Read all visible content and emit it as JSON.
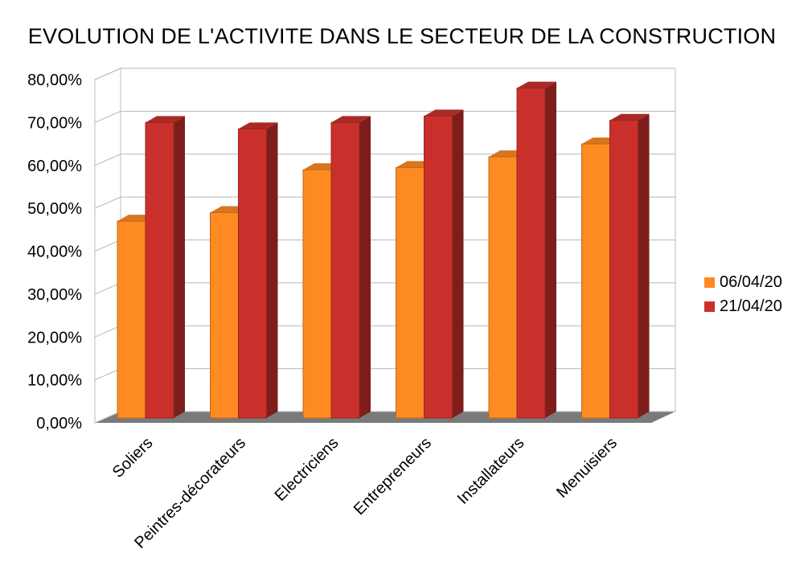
{
  "chart_data": {
    "type": "bar",
    "title": "EVOLUTION DE L'ACTIVITE DANS LE SECTEUR DE LA CONSTRUCTION",
    "categories": [
      "Soliers",
      "Peintres-décorateurs",
      "Electriciens",
      "Entrepreneurs",
      "Installateurs",
      "Menuisiers"
    ],
    "series": [
      {
        "name": "06/04/20",
        "values": [
          47,
          49,
          59,
          59.5,
          62,
          65
        ],
        "color": "#fe8a22"
      },
      {
        "name": "21/04/20",
        "values": [
          70,
          68.5,
          70,
          71.5,
          78,
          70.5
        ],
        "color": "#c9302c"
      }
    ],
    "y_ticks": [
      "0,00%",
      "10,00%",
      "20,00%",
      "30,00%",
      "40,00%",
      "50,00%",
      "60,00%",
      "70,00%",
      "80,00%"
    ],
    "ylim": [
      0,
      80
    ],
    "grid": true,
    "legend_position": "right",
    "style": "3d-bar"
  }
}
